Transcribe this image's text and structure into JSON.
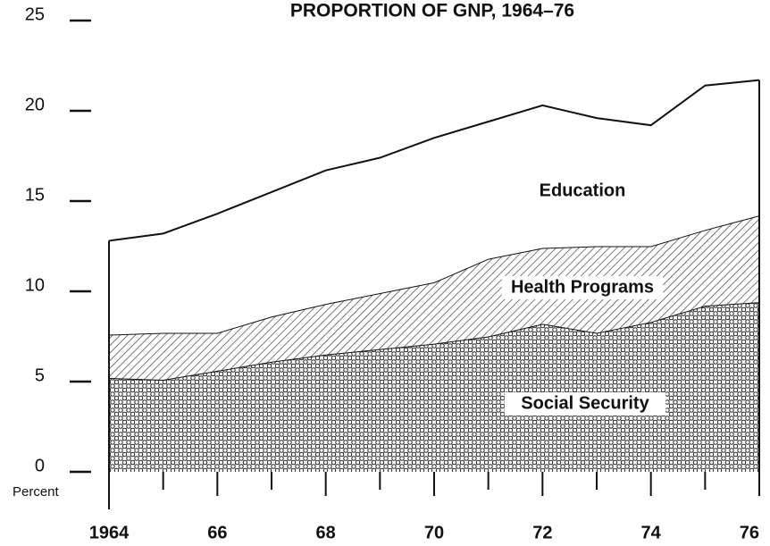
{
  "chart_data": {
    "type": "stacked_area",
    "title": "PROPORTION OF GNP, 1964–76",
    "y_label": "Percent",
    "x": [
      1964,
      1965,
      1966,
      1967,
      1968,
      1969,
      1970,
      1971,
      1972,
      1973,
      1974,
      1975,
      1976
    ],
    "series": [
      {
        "name": "Social Security",
        "fill": "dots",
        "values": [
          5.2,
          5.1,
          5.6,
          6.1,
          6.5,
          6.8,
          7.1,
          7.5,
          8.2,
          7.7,
          8.3,
          9.2,
          9.4
        ]
      },
      {
        "name": "Health Programs",
        "fill": "hatch",
        "values": [
          2.4,
          2.6,
          2.1,
          2.5,
          2.8,
          3.1,
          3.4,
          4.3,
          4.2,
          4.8,
          4.2,
          4.2,
          4.8
        ]
      },
      {
        "name": "Education",
        "fill": "white",
        "values": [
          5.2,
          5.5,
          6.6,
          6.9,
          7.4,
          7.5,
          8.0,
          7.6,
          7.9,
          7.1,
          6.7,
          8.0,
          7.5
        ]
      }
    ],
    "xlim": [
      1964,
      1976
    ],
    "xticks": [
      {
        "value": 1964,
        "label": "1964"
      },
      {
        "value": 1966,
        "label": "66"
      },
      {
        "value": 1968,
        "label": "68"
      },
      {
        "value": 1970,
        "label": "70"
      },
      {
        "value": 1972,
        "label": "72"
      },
      {
        "value": 1974,
        "label": "74"
      },
      {
        "value": 1976,
        "label": "76"
      }
    ],
    "minor_xticks": [
      1965,
      1967,
      1969,
      1971,
      1973,
      1975
    ],
    "ylim": [
      0,
      25
    ],
    "yticks": [
      0,
      5,
      10,
      15,
      20,
      25
    ]
  }
}
